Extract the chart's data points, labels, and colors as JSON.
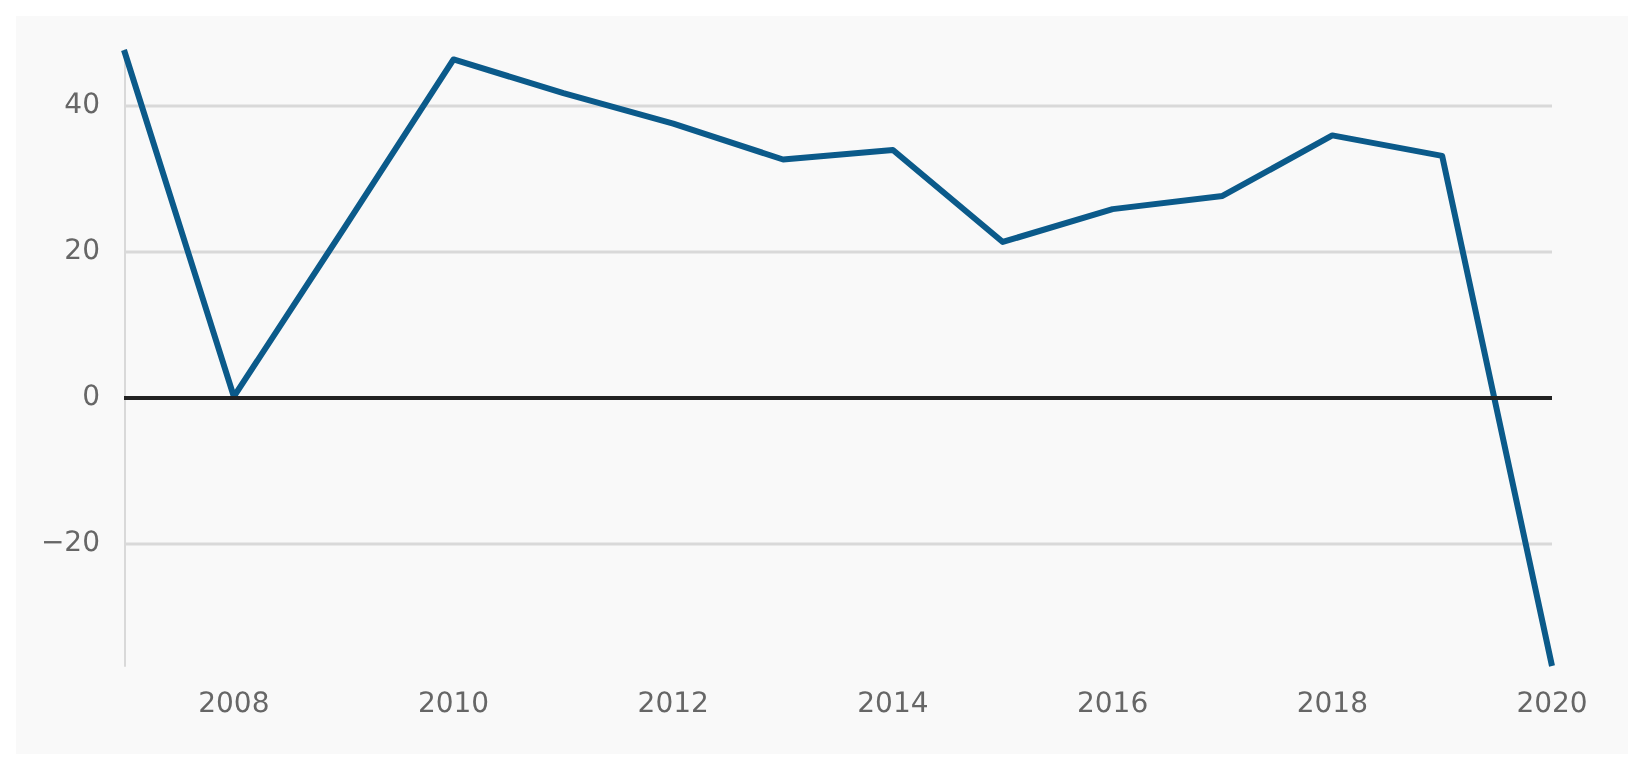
{
  "chart_data": {
    "type": "line",
    "x": [
      2007,
      2008,
      2009,
      2010,
      2011,
      2012,
      2013,
      2014,
      2015,
      2016,
      2017,
      2018,
      2019,
      2020
    ],
    "series": [
      {
        "color": "#0b5a8a",
        "values": [
          47.5,
          0,
          23,
          46.2,
          41.6,
          37.4,
          32.5,
          33.8,
          21.2,
          25.7,
          27.5,
          35.8,
          33,
          -36.9
        ]
      }
    ],
    "xlim": [
      2007,
      2020
    ],
    "xticks": [
      2008,
      2010,
      2012,
      2014,
      2016,
      2018,
      2020
    ],
    "ylim": [
      -36.9,
      47.5
    ],
    "yticks": [
      {
        "value": -20,
        "label": "−20"
      },
      0,
      20,
      40
    ],
    "ref_lines": [
      {
        "axis": "y",
        "value": 0,
        "color": "#222222"
      }
    ],
    "grid": "y",
    "marker": "none",
    "line_style": "solid"
  }
}
